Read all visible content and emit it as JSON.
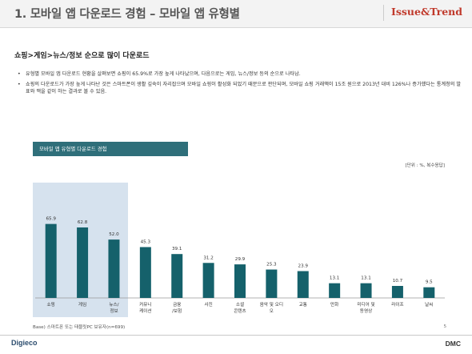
{
  "header": {
    "title": "1. 모바일 앱 다운로드 경험 – 모바일 앱 유형별",
    "brand": "Issue&Trend"
  },
  "sub_heading": "쇼핑>게임>뉴스/정보 순으로 많이 다운로드",
  "bullets": [
    "유형별 모바일 앱 다운로드 현황을 살펴보면 쇼핑이 65.9%로 가장 높게 나타났으며, 다음으로는 게임, 뉴스/정보 등의 순으로 나타남.",
    "쇼핑의 다운로드가 가장 높게 나타난 것은 스마트폰이 생활 깊숙이 자리잡으며 모바일 쇼핑이 활성화 되었기 때문으로 판단되며, 모바일 쇼핑 거래액이 15조 원으로 2013년 대비 126%나 증가했다는 통계청의 발표와 맥을 같이 하는 결과로 볼 수 있음."
  ],
  "chart_title": "모바일 앱 유형별 다운로드 경험",
  "unit_note": "[단위 : %, 복수응답]",
  "bar_color": "#15616b",
  "highlight_color": "#d6e2ee",
  "chart_data": {
    "type": "bar",
    "title": "모바일 앱 유형별 다운로드 경험",
    "categories": [
      "쇼핑",
      "게임",
      "뉴스/\n정보",
      "커뮤니\n케이션",
      "금융\n/보험",
      "사진",
      "소셜\n콘텐츠",
      "음악 및 오디\n오",
      "교통",
      "만화",
      "미디어 및\n동영상",
      "라이프",
      "날씨"
    ],
    "values": [
      65.9,
      62.8,
      52.0,
      45.3,
      39.1,
      31.2,
      29.9,
      25.3,
      23.9,
      13.1,
      13.1,
      10.7,
      9.5
    ],
    "value_labels": [
      "65.9",
      "62.8",
      "52.0",
      "45.3",
      "39.1",
      "31.2",
      "29.9",
      "25.3",
      "23.9",
      "13.1",
      "13.1",
      "10.7",
      "9.5"
    ],
    "highlighted_categories": [
      "쇼핑",
      "게임",
      "뉴스/\n정보"
    ],
    "ylim": [
      0,
      100
    ],
    "grid": false,
    "legend": "none"
  },
  "footnote": "Base) 스마트폰 또는 태블릿PC 보유자(n=699)",
  "page_number": "5",
  "footer": {
    "left_logo": "Digieco",
    "right_logo": "DMC"
  }
}
